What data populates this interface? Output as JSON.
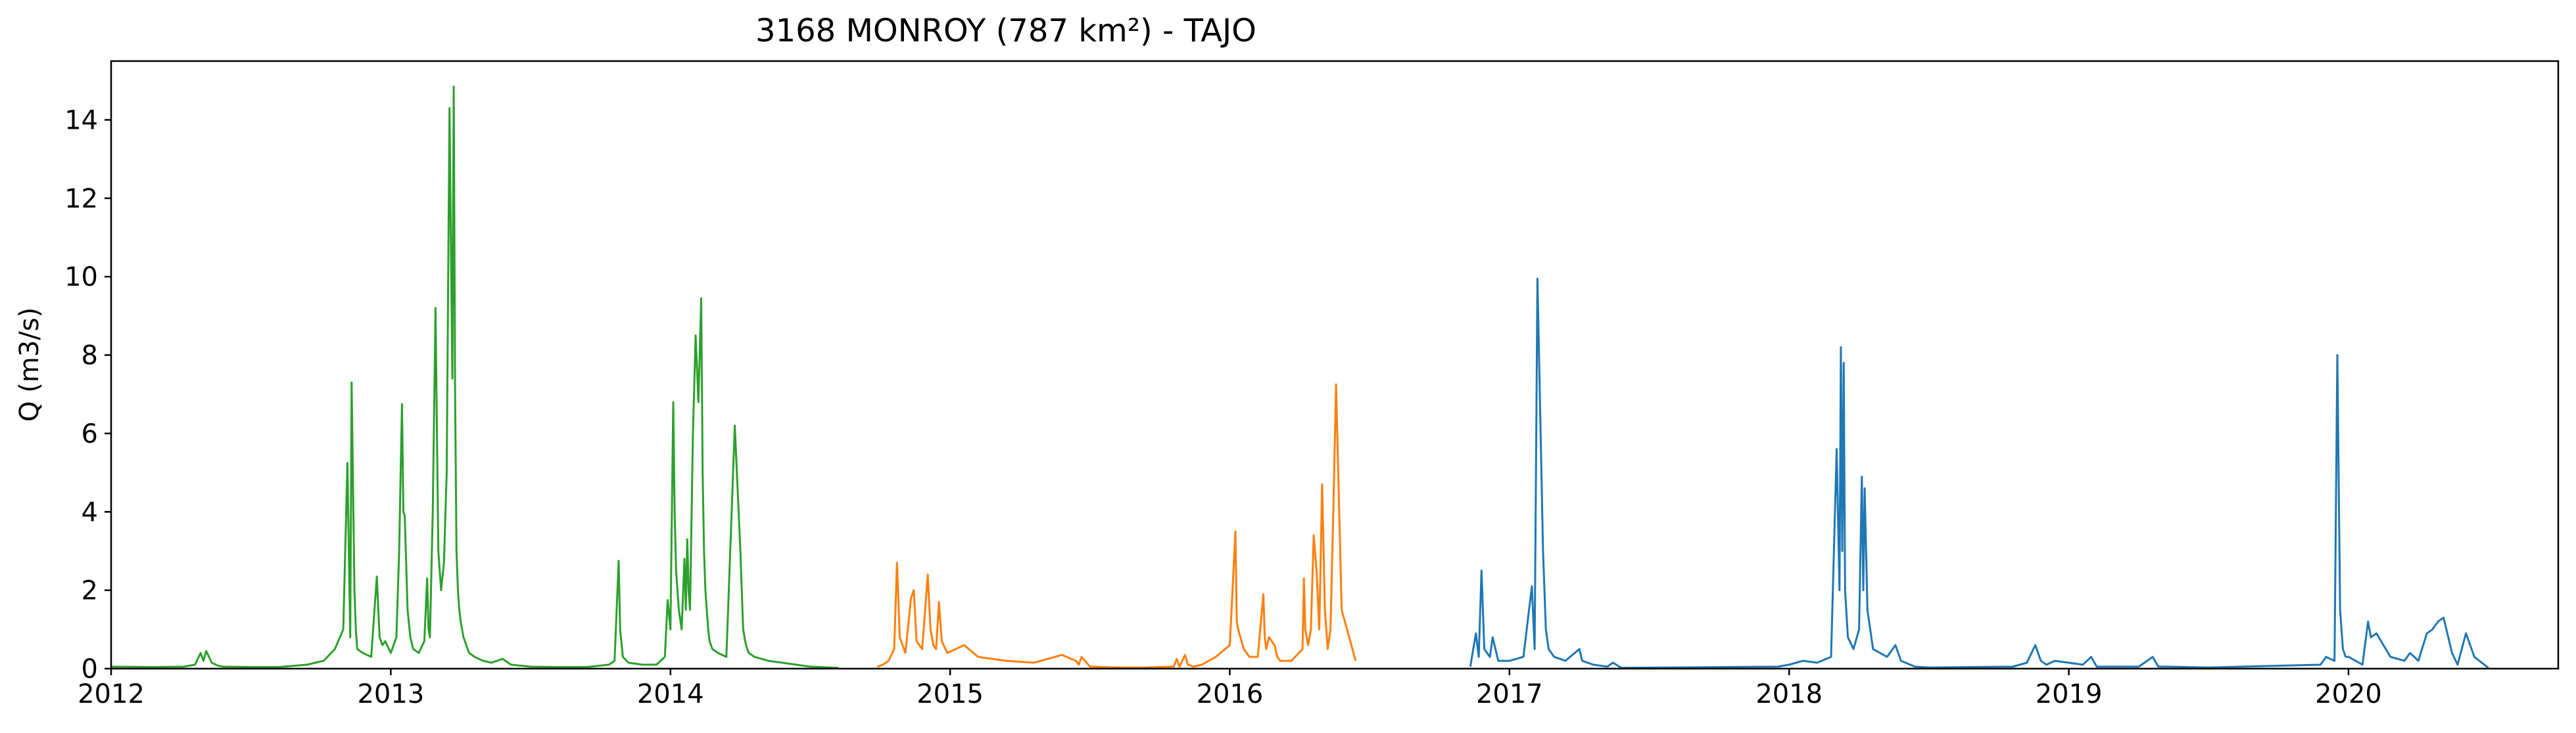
{
  "chart_data": {
    "type": "line",
    "title": "3168 MONROY (787 km²) - TAJO",
    "xlabel": "",
    "ylabel": "Q (m3/s)",
    "xlim": [
      2012.0,
      2020.75
    ],
    "ylim": [
      0,
      15.5
    ],
    "x_ticks": [
      2012,
      2013,
      2014,
      2015,
      2016,
      2017,
      2018,
      2019,
      2020
    ],
    "x_tick_labels": [
      "2012",
      "2013",
      "2014",
      "2015",
      "2016",
      "2017",
      "2018",
      "2019",
      "2020"
    ],
    "y_ticks": [
      0,
      2,
      4,
      6,
      8,
      10,
      12,
      14
    ],
    "y_tick_labels": [
      "0",
      "2",
      "4",
      "6",
      "8",
      "10",
      "12",
      "14"
    ],
    "grid": false,
    "legend": "none",
    "series": [
      {
        "color": "#2ca02c",
        "x": [
          2012.0,
          2012.15,
          2012.26,
          2012.3,
          2012.32,
          2012.33,
          2012.34,
          2012.36,
          2012.38,
          2012.4,
          2012.5,
          2012.6,
          2012.7,
          2012.76,
          2012.8,
          2012.83,
          2012.845,
          2012.855,
          2012.86,
          2012.87,
          2012.875,
          2012.88,
          2012.9,
          2012.93,
          2012.95,
          2012.96,
          2012.97,
          2012.98,
          2013.0,
          2013.02,
          2013.03,
          2013.04,
          2013.045,
          2013.05,
          2013.06,
          2013.07,
          2013.08,
          2013.1,
          2013.12,
          2013.13,
          2013.135,
          2013.14,
          2013.15,
          2013.16,
          2013.17,
          2013.18,
          2013.19,
          2013.2,
          2013.21,
          2013.22,
          2013.225,
          2013.23,
          2013.235,
          2013.24,
          2013.245,
          2013.25,
          2013.26,
          2013.27,
          2013.28,
          2013.3,
          2013.33,
          2013.36,
          2013.4,
          2013.43,
          2013.5,
          2013.6,
          2013.7,
          2013.78,
          2013.8,
          2013.815,
          2013.82,
          2013.83,
          2013.85,
          2013.9,
          2013.95,
          2013.98,
          2013.99,
          2014.0,
          2014.01,
          2014.015,
          2014.02,
          2014.03,
          2014.04,
          2014.05,
          2014.055,
          2014.06,
          2014.065,
          2014.07,
          2014.08,
          2014.09,
          2014.1,
          2014.11,
          2014.115,
          2014.12,
          2014.125,
          2014.13,
          2014.135,
          2014.14,
          2014.15,
          2014.17,
          2014.2,
          2014.23,
          2014.25,
          2014.26,
          2014.27,
          2014.28,
          2014.3,
          2014.35,
          2014.4,
          2014.5,
          2014.6
        ],
        "y": [
          0.05,
          0.04,
          0.05,
          0.1,
          0.4,
          0.2,
          0.45,
          0.15,
          0.08,
          0.05,
          0.04,
          0.04,
          0.1,
          0.2,
          0.5,
          1.0,
          5.25,
          0.8,
          7.3,
          2.0,
          1.0,
          0.5,
          0.4,
          0.3,
          2.35,
          0.8,
          0.6,
          0.7,
          0.4,
          0.8,
          3.0,
          6.75,
          4.0,
          3.9,
          1.5,
          0.8,
          0.5,
          0.4,
          0.7,
          2.3,
          1.0,
          0.8,
          4.0,
          9.2,
          3.0,
          2.0,
          2.7,
          5.0,
          14.3,
          7.4,
          14.85,
          7.0,
          3.0,
          2.0,
          1.5,
          1.2,
          0.8,
          0.6,
          0.4,
          0.3,
          0.2,
          0.15,
          0.25,
          0.1,
          0.05,
          0.04,
          0.04,
          0.1,
          0.2,
          2.75,
          1.0,
          0.3,
          0.15,
          0.1,
          0.1,
          0.3,
          1.75,
          1.0,
          6.8,
          4.0,
          2.5,
          1.5,
          1.0,
          2.8,
          1.5,
          3.3,
          2.0,
          1.5,
          5.9,
          8.5,
          6.8,
          9.45,
          5.0,
          3.0,
          2.0,
          1.5,
          1.0,
          0.7,
          0.5,
          0.4,
          0.3,
          6.2,
          3.0,
          1.0,
          0.6,
          0.4,
          0.3,
          0.2,
          0.15,
          0.05,
          0.02
        ]
      },
      {
        "color": "#ff7f0e",
        "x": [
          2014.74,
          2014.76,
          2014.78,
          2014.8,
          2014.81,
          2014.82,
          2014.84,
          2014.86,
          2014.87,
          2014.88,
          2014.9,
          2014.92,
          2014.93,
          2014.94,
          2014.95,
          2014.96,
          2014.97,
          2014.99,
          2015.05,
          2015.1,
          2015.15,
          2015.2,
          2015.3,
          2015.4,
          2015.45,
          2015.46,
          2015.47,
          2015.5,
          2015.6,
          2015.7,
          2015.8,
          2015.81,
          2015.82,
          2015.84,
          2015.85,
          2015.87,
          2015.9,
          2015.95,
          2016.0,
          2016.02,
          2016.025,
          2016.03,
          2016.05,
          2016.07,
          2016.1,
          2016.12,
          2016.125,
          2016.13,
          2016.14,
          2016.16,
          2016.17,
          2016.18,
          2016.2,
          2016.22,
          2016.26,
          2016.265,
          2016.27,
          2016.28,
          2016.29,
          2016.3,
          2016.31,
          2016.32,
          2016.33,
          2016.34,
          2016.35,
          2016.36,
          2016.37,
          2016.38,
          2016.4,
          2016.45
        ],
        "y": [
          0.05,
          0.1,
          0.2,
          0.5,
          2.7,
          0.8,
          0.4,
          1.8,
          2.0,
          0.7,
          0.5,
          2.4,
          1.0,
          0.6,
          0.5,
          1.7,
          0.7,
          0.4,
          0.6,
          0.3,
          0.25,
          0.2,
          0.15,
          0.35,
          0.2,
          0.1,
          0.3,
          0.05,
          0.03,
          0.03,
          0.05,
          0.25,
          0.05,
          0.35,
          0.1,
          0.05,
          0.1,
          0.3,
          0.6,
          3.5,
          1.2,
          1.0,
          0.5,
          0.3,
          0.3,
          1.9,
          0.8,
          0.5,
          0.8,
          0.6,
          0.3,
          0.2,
          0.2,
          0.2,
          0.5,
          2.3,
          1.0,
          0.6,
          1.0,
          3.4,
          2.5,
          1.0,
          4.7,
          1.5,
          0.5,
          1.0,
          4.0,
          7.25,
          1.5,
          0.2
        ]
      },
      {
        "color": "#1f77b4",
        "x": [
          2016.86,
          2016.88,
          2016.89,
          2016.9,
          2016.91,
          2016.93,
          2016.94,
          2016.96,
          2017.0,
          2017.05,
          2017.08,
          2017.09,
          2017.1,
          2017.12,
          2017.13,
          2017.14,
          2017.16,
          2017.2,
          2017.25,
          2017.26,
          2017.3,
          2017.35,
          2017.37,
          2017.4,
          2017.96,
          2018.0,
          2018.05,
          2018.1,
          2018.15,
          2018.17,
          2018.18,
          2018.185,
          2018.19,
          2018.195,
          2018.2,
          2018.21,
          2018.23,
          2018.25,
          2018.26,
          2018.265,
          2018.27,
          2018.28,
          2018.3,
          2018.35,
          2018.38,
          2018.4,
          2018.45,
          2018.5,
          2018.8,
          2018.85,
          2018.88,
          2018.9,
          2018.92,
          2018.95,
          2019.0,
          2019.05,
          2019.08,
          2019.1,
          2019.15,
          2019.25,
          2019.3,
          2019.32,
          2019.35,
          2019.5,
          2019.9,
          2019.92,
          2019.95,
          2019.96,
          2019.97,
          2019.98,
          2019.99,
          2020.0,
          2020.05,
          2020.07,
          2020.08,
          2020.1,
          2020.15,
          2020.2,
          2020.22,
          2020.25,
          2020.28,
          2020.3,
          2020.32,
          2020.34,
          2020.37,
          2020.39,
          2020.42,
          2020.45,
          2020.5
        ],
        "y": [
          0.05,
          0.9,
          0.3,
          2.5,
          0.5,
          0.3,
          0.8,
          0.2,
          0.2,
          0.3,
          2.1,
          0.5,
          9.95,
          3.0,
          1.0,
          0.5,
          0.3,
          0.2,
          0.5,
          0.2,
          0.1,
          0.05,
          0.15,
          0.02,
          0.05,
          0.1,
          0.2,
          0.15,
          0.3,
          5.6,
          2.0,
          8.2,
          3.0,
          7.8,
          2.0,
          0.8,
          0.5,
          1.0,
          4.9,
          2.0,
          4.6,
          1.5,
          0.5,
          0.3,
          0.6,
          0.2,
          0.05,
          0.03,
          0.05,
          0.15,
          0.6,
          0.2,
          0.1,
          0.2,
          0.15,
          0.1,
          0.3,
          0.05,
          0.05,
          0.05,
          0.3,
          0.05,
          0.05,
          0.03,
          0.1,
          0.3,
          0.2,
          8.0,
          1.5,
          0.5,
          0.3,
          0.3,
          0.1,
          1.2,
          0.8,
          0.9,
          0.3,
          0.2,
          0.4,
          0.2,
          0.9,
          1.0,
          1.2,
          1.3,
          0.4,
          0.1,
          0.9,
          0.3,
          0.02
        ]
      }
    ]
  }
}
